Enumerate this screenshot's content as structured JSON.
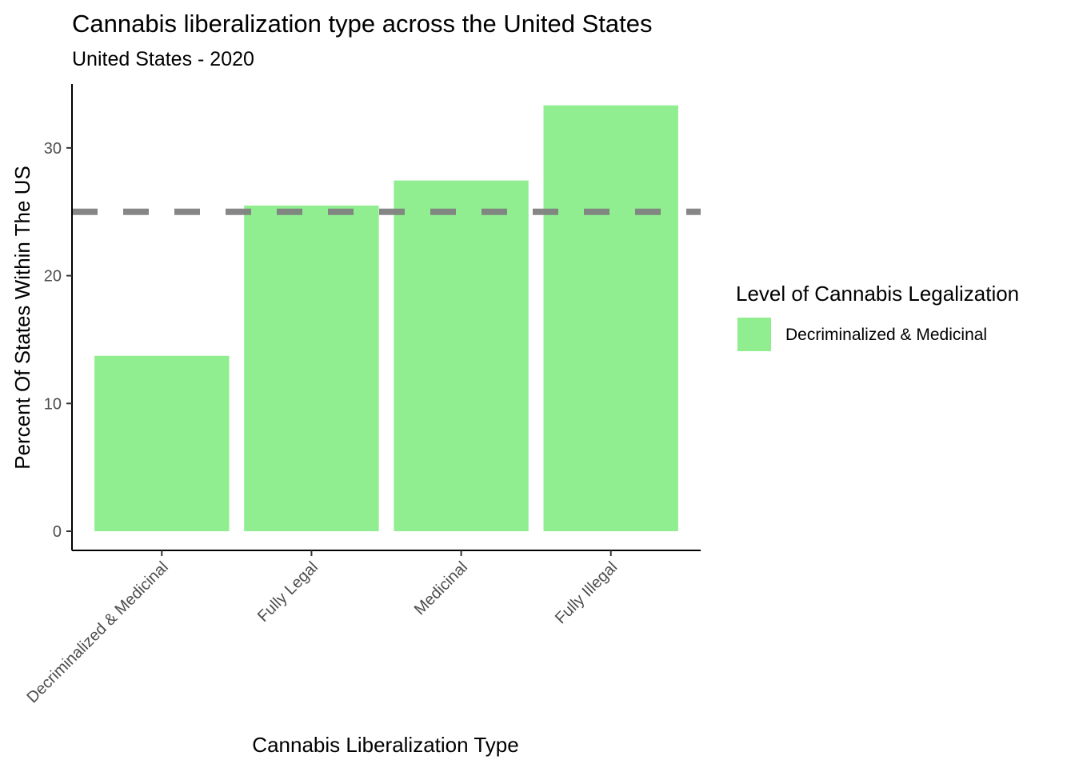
{
  "chart_data": {
    "type": "bar",
    "title": "Cannabis liberalization type across the United States",
    "subtitle": "United States - 2020",
    "xlabel": "Cannabis Liberalization Type",
    "ylabel": "Percent Of States Within The US",
    "categories": [
      "Decriminalized & Medicinal",
      "Fully Legal",
      "Medicinal",
      "Fully Illegal"
    ],
    "values": [
      13.73,
      25.49,
      27.45,
      33.33
    ],
    "ylim": [
      -1.5,
      35
    ],
    "yticks": [
      0,
      10,
      20,
      30
    ],
    "reference_line": {
      "y": 25,
      "style": "dashed",
      "color": "#7f7f7f"
    },
    "bar_color": "#90ee90",
    "grid": false,
    "legend": {
      "title": "Level of Cannabis Legalization",
      "placement": "right",
      "entries": [
        {
          "label": "Decriminalized & Medicinal",
          "color": "#90ee90"
        }
      ]
    }
  }
}
